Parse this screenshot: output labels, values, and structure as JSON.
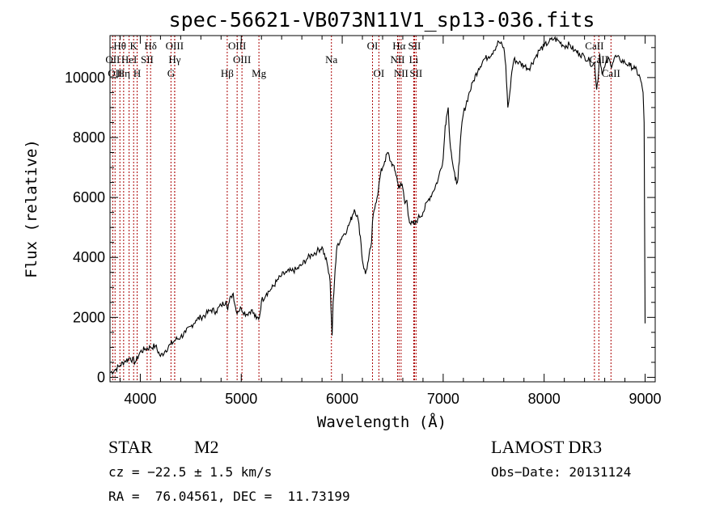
{
  "chart_data": {
    "type": "line",
    "title": "spec-56621-VB073N11V1_sp13-036.fits",
    "xlabel": "Wavelength (Å)",
    "ylabel": "Flux (relative)",
    "xlim": [
      3700,
      9100
    ],
    "ylim": [
      -150,
      11400
    ],
    "x_ticks": [
      4000,
      5000,
      6000,
      7000,
      8000,
      9000
    ],
    "y_ticks": [
      0,
      2000,
      4000,
      6000,
      8000,
      10000
    ],
    "line_color": "#000000",
    "marker_color": "#aa0000",
    "spectrum": {
      "x": [
        3700,
        3750,
        3800,
        3850,
        3900,
        3950,
        4000,
        4050,
        4100,
        4150,
        4200,
        4250,
        4300,
        4350,
        4400,
        4450,
        4500,
        4550,
        4600,
        4650,
        4700,
        4750,
        4800,
        4850,
        4860,
        4880,
        4900,
        4920,
        4950,
        5000,
        5050,
        5100,
        5150,
        5180,
        5200,
        5250,
        5300,
        5350,
        5400,
        5450,
        5500,
        5550,
        5600,
        5650,
        5700,
        5750,
        5800,
        5850,
        5880,
        5890,
        5900,
        5910,
        5930,
        5950,
        6000,
        6050,
        6080,
        6100,
        6120,
        6150,
        6180,
        6200,
        6230,
        6260,
        6290,
        6300,
        6330,
        6360,
        6380,
        6400,
        6420,
        6450,
        6480,
        6500,
        6520,
        6540,
        6560,
        6580,
        6600,
        6620,
        6640,
        6660,
        6680,
        6700,
        6720,
        6750,
        6800,
        6850,
        6900,
        6950,
        7000,
        7020,
        7040,
        7050,
        7060,
        7080,
        7100,
        7120,
        7140,
        7160,
        7180,
        7200,
        7250,
        7300,
        7350,
        7400,
        7450,
        7500,
        7550,
        7600,
        7620,
        7640,
        7650,
        7660,
        7680,
        7700,
        7750,
        7800,
        7850,
        7900,
        7950,
        8000,
        8050,
        8100,
        8150,
        8200,
        8250,
        8300,
        8350,
        8400,
        8450,
        8480,
        8500,
        8520,
        8540,
        8550,
        8560,
        8580,
        8600,
        8620,
        8640,
        8660,
        8680,
        8700,
        8750,
        8800,
        8850,
        8900,
        8950,
        8980,
        8990,
        9000
      ],
      "y": [
        150,
        250,
        400,
        550,
        650,
        500,
        850,
        950,
        1000,
        1050,
        700,
        900,
        1100,
        1250,
        1350,
        1500,
        1700,
        1900,
        2000,
        2100,
        2250,
        2200,
        2400,
        2550,
        2300,
        2500,
        2700,
        2800,
        2200,
        2300,
        2100,
        2250,
        1950,
        2000,
        2550,
        2800,
        2950,
        3200,
        3400,
        3500,
        3550,
        3600,
        3750,
        3950,
        4100,
        4200,
        4350,
        3800,
        3200,
        2200,
        1400,
        2500,
        3600,
        4400,
        4700,
        4950,
        5200,
        5400,
        5600,
        5400,
        4700,
        3900,
        3450,
        3900,
        4500,
        5200,
        5800,
        6300,
        6800,
        7000,
        7200,
        7500,
        7200,
        7100,
        6900,
        6700,
        6300,
        6500,
        6300,
        5800,
        5900,
        5300,
        5100,
        5150,
        5100,
        5300,
        5500,
        5900,
        6200,
        6600,
        7300,
        8400,
        8800,
        9000,
        8200,
        7500,
        7000,
        6600,
        6500,
        7200,
        8300,
        8800,
        9400,
        9900,
        10300,
        10600,
        10700,
        10900,
        11200,
        11000,
        10400,
        9000,
        9200,
        9500,
        10200,
        10600,
        10500,
        10400,
        10300,
        10600,
        10900,
        11050,
        11200,
        11300,
        11200,
        11050,
        11100,
        10900,
        10800,
        10700,
        10550,
        10400,
        10500,
        9600,
        10200,
        10800,
        10400,
        10150,
        10350,
        10500,
        10650,
        10400,
        10500,
        10700,
        10600,
        10500,
        10400,
        10300,
        10000,
        9500,
        8500,
        1800
      ]
    },
    "lines": [
      {
        "name": "Hθ",
        "wave": 3798,
        "row": 1
      },
      {
        "name": "OII",
        "wave": 3727,
        "row": 2
      },
      {
        "name": "OII",
        "wave": 3750,
        "row": 3
      },
      {
        "name": "Hη",
        "wave": 3835,
        "row": 3
      },
      {
        "name": "HeI",
        "wave": 3889,
        "row": 2
      },
      {
        "name": "K",
        "wave": 3934,
        "row": 1
      },
      {
        "name": "H",
        "wave": 3969,
        "row": 3
      },
      {
        "name": "SII",
        "wave": 4068,
        "row": 2
      },
      {
        "name": "Hδ",
        "wave": 4102,
        "row": 1
      },
      {
        "name": "OIII",
        "wave": 4340,
        "row": 1
      },
      {
        "name": "Hγ",
        "wave": 4341,
        "row": 2
      },
      {
        "name": "G",
        "wave": 4304,
        "row": 3
      },
      {
        "name": "Hβ",
        "wave": 4861,
        "row": 3
      },
      {
        "name": "OIII",
        "wave": 4959,
        "row": 1
      },
      {
        "name": "OIII",
        "wave": 5007,
        "row": 2
      },
      {
        "name": "Mg",
        "wave": 5175,
        "row": 3
      },
      {
        "name": "Na",
        "wave": 5893,
        "row": 2
      },
      {
        "name": "OI",
        "wave": 6300,
        "row": 1
      },
      {
        "name": "OI",
        "wave": 6363,
        "row": 3
      },
      {
        "name": "Hα",
        "wave": 6563,
        "row": 1
      },
      {
        "name": "NII",
        "wave": 6548,
        "row": 2
      },
      {
        "name": "NII",
        "wave": 6583,
        "row": 3
      },
      {
        "name": "SII",
        "wave": 6716,
        "row": 1
      },
      {
        "name": "Li",
        "wave": 6708,
        "row": 2
      },
      {
        "name": "SII",
        "wave": 6731,
        "row": 3
      },
      {
        "name": "CaII",
        "wave": 8498,
        "row": 1
      },
      {
        "name": "CaII",
        "wave": 8542,
        "row": 2
      },
      {
        "name": "CaII",
        "wave": 8662,
        "row": 3
      }
    ]
  },
  "info": {
    "object_class": "STAR",
    "subclass": "M2",
    "survey": "LAMOST DR3",
    "cz": "cz = −22.5 ± 1.5 km/s",
    "obs_date": "Obs−Date: 20131124",
    "coords": "RA =  76.04561, DEC =  11.73199"
  }
}
